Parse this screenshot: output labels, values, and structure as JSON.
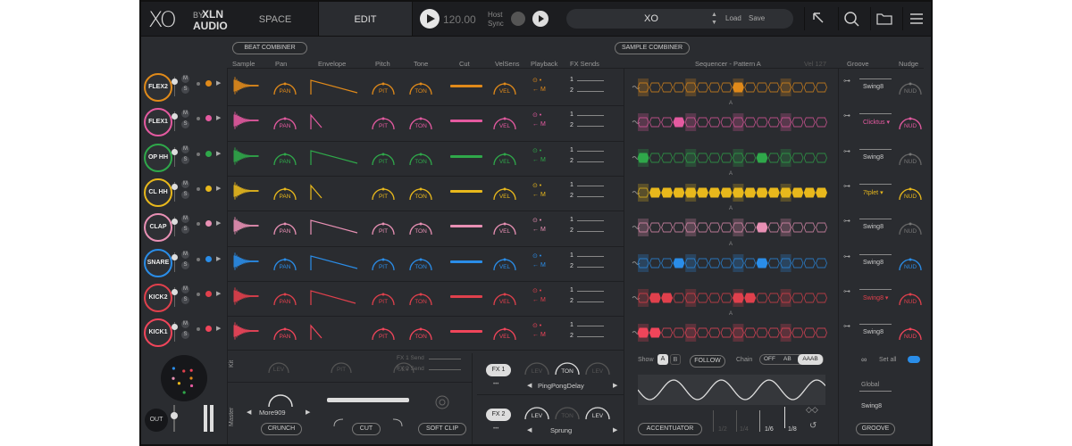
{
  "header": {
    "logo_main": "XO",
    "logo_by": "BY",
    "logo_brand": "XLN",
    "logo_sub": "AUDIO",
    "tab_space": "SPACE",
    "tab_edit": "EDIT",
    "bpm": "120.00",
    "host_sync": "Host\nSync",
    "preset_name": "XO",
    "load": "Load",
    "save": "Save"
  },
  "beat_combiner": "BEAT COMBINER",
  "sample_combiner": "SAMPLE COMBINER",
  "columns": {
    "sample": "Sample",
    "pan": "Pan",
    "envelope": "Envelope",
    "pitch": "Pitch",
    "tone": "Tone",
    "cut": "Cut",
    "velsens": "VelSens",
    "playback": "Playback",
    "fx_sends": "FX Sends",
    "sequencer": "Sequencer - Pattern A",
    "vel": "Vel 127",
    "groove": "Groove",
    "nudge": "Nudge"
  },
  "knob_labels": {
    "pan": "PAN",
    "pit": "PIT",
    "ton": "TON",
    "vel": "VEL",
    "nud": "NUD",
    "lev": "LEV"
  },
  "ms": {
    "m": "M",
    "s": "S"
  },
  "send_labels": {
    "one": "1",
    "two": "2",
    "m": "M",
    "pattern_marker": "A"
  },
  "tracks": [
    {
      "name": "FLEX2",
      "color": "#e08a1a",
      "groove": "Swing8"
    },
    {
      "name": "FLEX1",
      "color": "#e45aa0",
      "groove": "Clicktus"
    },
    {
      "name": "OP HH",
      "color": "#2fa84a",
      "groove": "Swing8"
    },
    {
      "name": "CL HH",
      "color": "#e8b81c",
      "groove": "7tplet"
    },
    {
      "name": "CLAP",
      "color": "#e890b4",
      "groove": "Swing8"
    },
    {
      "name": "SNARE",
      "color": "#2a8de8",
      "groove": "Swing8"
    },
    {
      "name": "KICK2",
      "color": "#e0404c",
      "groove": "Swing8"
    },
    {
      "name": "KICK1",
      "color": "#f0455a",
      "groove": "Swing8"
    }
  ],
  "kit": {
    "label": "Kit",
    "fx1_send": "FX 1 Send",
    "fx2_send": "FX 2 Send"
  },
  "master": {
    "label": "Master",
    "preset": "More909",
    "crunch": "CRUNCH",
    "cut": "CUT",
    "soft_clip": "SOFT CLIP"
  },
  "fx": {
    "fx1": "FX 1",
    "fx1_preset": "PingPongDelay",
    "fx2": "FX 2",
    "fx2_preset": "Sprung",
    "dots": "•••"
  },
  "sequencer_footer": {
    "show": "Show",
    "a": "A",
    "b": "B",
    "follow": "FOLLOW",
    "chain": "Chain",
    "off": "OFF",
    "ab": "AB",
    "aaab": "AAAB",
    "accentuator": "ACCENTUATOR",
    "div_half": "1/2",
    "div_quarter": "1/4",
    "div_sixth": "1/6",
    "div_eighth": "1/8"
  },
  "groove_footer": {
    "set_all": "Set all",
    "global": "Global",
    "global_value": "Swing8",
    "groove_button": "GROOVE"
  },
  "out": "OUT",
  "colors": {
    "bg": "#2a2c30",
    "topbar": "#1c1d20",
    "accent_text": "#dddddd"
  }
}
